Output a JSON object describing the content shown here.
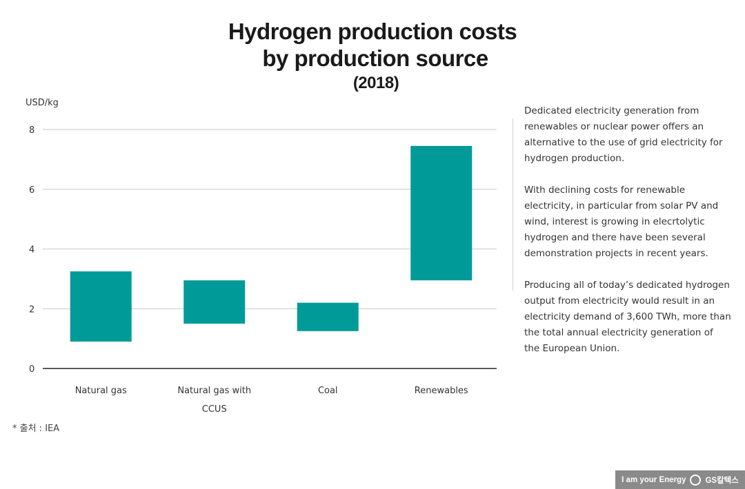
{
  "title": {
    "line1": "Hydrogen production costs",
    "line2": "by production source",
    "line3": "(2018)"
  },
  "chart_data": {
    "type": "bar",
    "subtype": "floating-range",
    "ylabel": "USD/kg",
    "ylim": [
      0,
      8
    ],
    "yticks": [
      0,
      2,
      4,
      6,
      8
    ],
    "grid": true,
    "categories": [
      "Natural gas",
      "Natural gas with CCUS",
      "Coal",
      "Renewables"
    ],
    "category_label_lines": [
      [
        "Natural gas"
      ],
      [
        "Natural gas with",
        "CCUS"
      ],
      [
        "Coal"
      ],
      [
        "Renewables"
      ]
    ],
    "ranges": [
      [
        0.9,
        3.25
      ],
      [
        1.5,
        2.95
      ],
      [
        1.25,
        2.2
      ],
      [
        2.95,
        7.45
      ]
    ],
    "bar_color": "#009b99"
  },
  "side_text": [
    "Dedicated electricity generation from renewables or nuclear power offers an alternative to the use of grid electricity for hydrogen production.",
    "With declining costs for renewable electricity, in particular from solar PV and wind, interest is growing in elecrtolytic hydrogen and there have been several demonstration projects in recent years.",
    "Producing all of today’s dedicated hydrogen output from electricity would result in an electricity demand of 3,600 TWh, more than the total annual electricity generation of the European Union."
  ],
  "source": "* 출처 : IEA",
  "footer": {
    "tagline": "I am your Energy",
    "brand": "GS칼텍스"
  }
}
